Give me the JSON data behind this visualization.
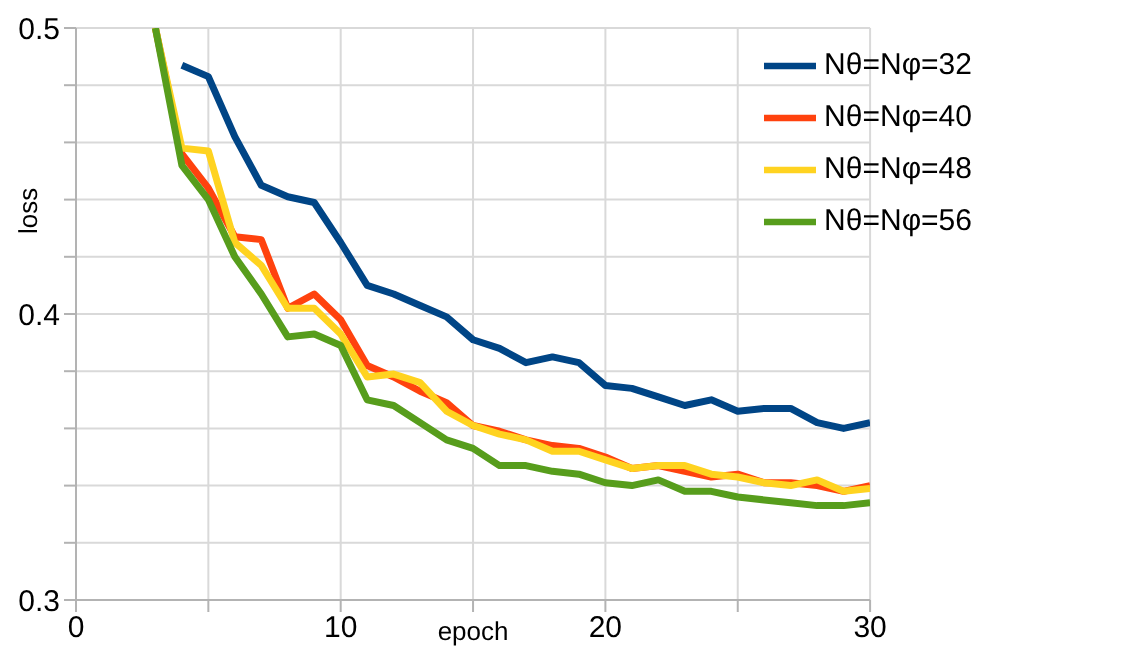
{
  "chart_data": {
    "type": "line",
    "xlabel": "epoch",
    "ylabel": "loss",
    "x": [
      3,
      4,
      5,
      6,
      7,
      8,
      9,
      10,
      11,
      12,
      13,
      14,
      15,
      16,
      17,
      18,
      19,
      20,
      21,
      22,
      23,
      24,
      25,
      26,
      27,
      28,
      29,
      30
    ],
    "series": [
      {
        "name": "Nθ=Nφ=32",
        "color": "#004586",
        "values": [
          null,
          0.487,
          0.483,
          0.462,
          0.445,
          0.441,
          0.439,
          0.425,
          0.41,
          0.407,
          0.403,
          0.399,
          0.391,
          0.388,
          0.383,
          0.385,
          0.383,
          0.375,
          0.374,
          0.371,
          0.368,
          0.37,
          0.366,
          0.367,
          0.367,
          0.362,
          0.36,
          0.362
        ]
      },
      {
        "name": "Nθ=Nφ=40",
        "color": "#ff420e",
        "values": [
          0.5,
          0.456,
          0.444,
          0.427,
          0.426,
          0.402,
          0.407,
          0.398,
          0.382,
          0.378,
          0.373,
          0.369,
          0.361,
          0.359,
          0.356,
          0.354,
          0.353,
          0.35,
          0.346,
          0.347,
          0.345,
          0.343,
          0.344,
          0.341,
          0.341,
          0.34,
          0.338,
          0.34
        ]
      },
      {
        "name": "Nθ=Nφ=48",
        "color": "#ffd320",
        "values": [
          0.5,
          0.458,
          0.457,
          0.425,
          0.417,
          0.402,
          0.402,
          0.393,
          0.378,
          0.379,
          0.376,
          0.366,
          0.361,
          0.358,
          0.356,
          0.352,
          0.352,
          0.349,
          0.346,
          0.347,
          0.347,
          0.344,
          0.343,
          0.341,
          0.34,
          0.342,
          0.338,
          0.339
        ]
      },
      {
        "name": "Nθ=Nφ=56",
        "color": "#579d1c",
        "values": [
          0.5,
          0.452,
          0.44,
          0.42,
          0.407,
          0.392,
          0.393,
          0.389,
          0.37,
          0.368,
          0.362,
          0.356,
          0.353,
          0.347,
          0.347,
          0.345,
          0.344,
          0.341,
          0.34,
          0.342,
          0.338,
          0.338,
          0.336,
          0.335,
          0.334,
          0.333,
          0.333,
          0.334
        ]
      }
    ],
    "xlim": [
      0,
      30
    ],
    "xticks": [
      0,
      {
        "value": 5,
        "label": null
      },
      10,
      {
        "value": 15,
        "label": null
      },
      20,
      {
        "value": 25,
        "label": null
      },
      30
    ],
    "ylim": [
      0.3,
      0.5
    ],
    "yticks": [
      0.3,
      {
        "value": 0.32,
        "label": null
      },
      {
        "value": 0.34,
        "label": null
      },
      {
        "value": 0.36,
        "label": null
      },
      {
        "value": 0.38,
        "label": null
      },
      0.4,
      {
        "value": 0.42,
        "label": null
      },
      {
        "value": 0.44,
        "label": null
      },
      {
        "value": 0.46,
        "label": null
      },
      {
        "value": 0.48,
        "label": null
      },
      0.5
    ],
    "grid": true,
    "legend": "top right",
    "marker": "none",
    "line_style": "solid"
  }
}
